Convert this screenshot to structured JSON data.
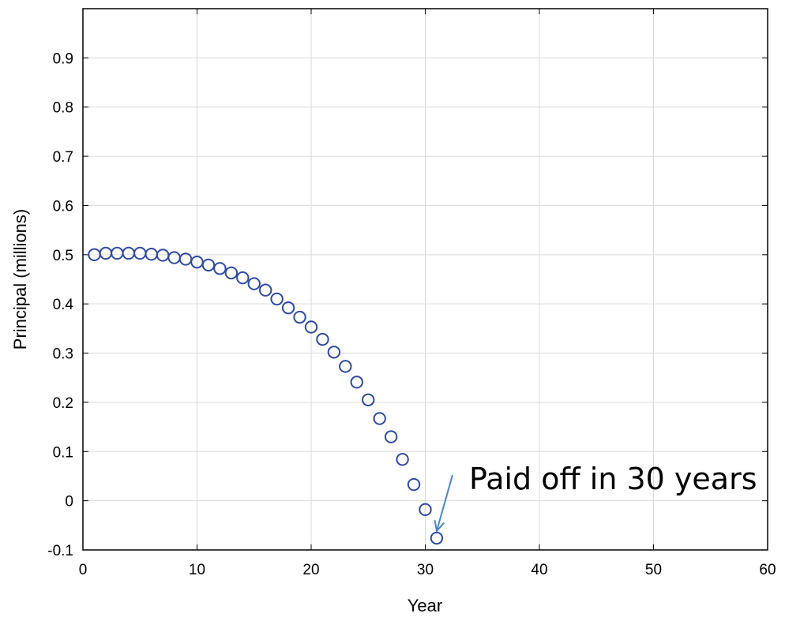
{
  "chart_data": {
    "type": "scatter",
    "title": "",
    "xlabel": "Year",
    "ylabel": "Principal (millions)",
    "xlim": [
      0,
      60
    ],
    "ylim": [
      -0.1,
      1.0
    ],
    "xticks": [
      "0",
      "10",
      "20",
      "30",
      "40",
      "50",
      "60"
    ],
    "yticks": [
      "-0.1",
      "0",
      "0.1",
      "0.2",
      "0.3",
      "0.4",
      "0.5",
      "0.6",
      "0.7",
      "0.8",
      "0.9"
    ],
    "grid": true,
    "marker": "open-circle",
    "color": "#2e4a9e",
    "x": [
      1,
      2,
      3,
      4,
      5,
      6,
      7,
      8,
      9,
      10,
      11,
      12,
      13,
      14,
      15,
      16,
      17,
      18,
      19,
      20,
      21,
      22,
      23,
      24,
      25,
      26,
      27,
      28,
      29,
      30,
      31
    ],
    "y": [
      0.5,
      0.503,
      0.503,
      0.503,
      0.503,
      0.501,
      0.499,
      0.494,
      0.491,
      0.485,
      0.479,
      0.472,
      0.463,
      0.453,
      0.441,
      0.428,
      0.41,
      0.392,
      0.373,
      0.353,
      0.328,
      0.302,
      0.273,
      0.241,
      0.205,
      0.167,
      0.13,
      0.084,
      0.033,
      -0.018,
      -0.076
    ],
    "annotation": {
      "text": "Paid off in 30 years",
      "x": 31,
      "y": -0.076,
      "arrow_color": "#4a86c5"
    }
  }
}
